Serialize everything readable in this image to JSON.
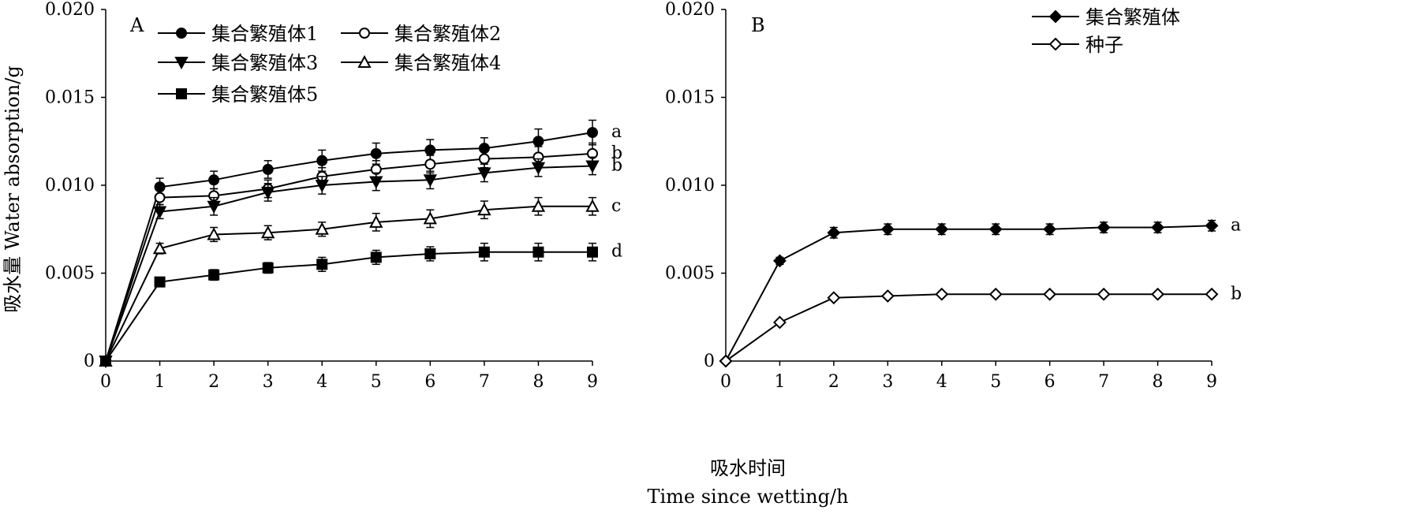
{
  "figure": {
    "ylabel": "吸水量 Water absorption/g",
    "xlabel_cn": "吸水时间",
    "xlabel_en": "Time since wetting/h"
  },
  "chart_data": [
    {
      "panel": "A",
      "type": "line",
      "x": [
        0,
        1,
        2,
        3,
        4,
        5,
        6,
        7,
        8,
        9
      ],
      "xlim": [
        0,
        9
      ],
      "ylim": [
        0,
        0.02
      ],
      "yticks": [
        "0",
        "0.005",
        "0.010",
        "0.015",
        "0.020"
      ],
      "xticks": [
        "0",
        "1",
        "2",
        "3",
        "4",
        "5",
        "6",
        "7",
        "8",
        "9"
      ],
      "legend_position": "top-left",
      "series": [
        {
          "name": "集合繁殖体1",
          "marker": "circle-filled",
          "values": [
            0,
            0.0099,
            0.0103,
            0.0109,
            0.0114,
            0.0118,
            0.012,
            0.0121,
            0.0125,
            0.013
          ],
          "errors": [
            0,
            0.0005,
            0.0005,
            0.0005,
            0.0006,
            0.0006,
            0.0006,
            0.0006,
            0.0007,
            0.0007
          ],
          "label": "a"
        },
        {
          "name": "集合繁殖体2",
          "marker": "circle-open",
          "values": [
            0,
            0.0093,
            0.0094,
            0.0098,
            0.0105,
            0.0109,
            0.0112,
            0.0115,
            0.0116,
            0.0118
          ],
          "errors": [
            0,
            0.0004,
            0.0004,
            0.0005,
            0.0005,
            0.0005,
            0.0005,
            0.0005,
            0.0006,
            0.0006
          ],
          "label": "b"
        },
        {
          "name": "集合繁殖体3",
          "marker": "triangle-down-filled",
          "values": [
            0,
            0.0085,
            0.0088,
            0.0096,
            0.01,
            0.0102,
            0.0103,
            0.0107,
            0.011,
            0.0111
          ],
          "errors": [
            0,
            0.0004,
            0.0005,
            0.0005,
            0.0005,
            0.0005,
            0.0005,
            0.0005,
            0.0005,
            0.0005
          ],
          "label": "b"
        },
        {
          "name": "集合繁殖体4",
          "marker": "triangle-up-open",
          "values": [
            0,
            0.0064,
            0.0072,
            0.0073,
            0.0075,
            0.0079,
            0.0081,
            0.0086,
            0.0088,
            0.0088
          ],
          "errors": [
            0,
            0.0003,
            0.0004,
            0.0004,
            0.0004,
            0.0005,
            0.0005,
            0.0005,
            0.0005,
            0.0005
          ],
          "label": "c"
        },
        {
          "name": "集合繁殖体5",
          "marker": "square-filled",
          "values": [
            0,
            0.0045,
            0.0049,
            0.0053,
            0.0055,
            0.0059,
            0.0061,
            0.0062,
            0.0062,
            0.0062
          ],
          "errors": [
            0,
            0.0002,
            0.0003,
            0.0003,
            0.0004,
            0.0004,
            0.0004,
            0.0005,
            0.0005,
            0.0005
          ],
          "label": "d"
        }
      ]
    },
    {
      "panel": "B",
      "type": "line",
      "x": [
        0,
        1,
        2,
        3,
        4,
        5,
        6,
        7,
        8,
        9
      ],
      "xlim": [
        0,
        9
      ],
      "ylim": [
        0,
        0.02
      ],
      "yticks": [
        "0",
        "0.005",
        "0.010",
        "0.015",
        "0.020"
      ],
      "xticks": [
        "0",
        "1",
        "2",
        "3",
        "4",
        "5",
        "6",
        "7",
        "8",
        "9"
      ],
      "legend_position": "top-right",
      "series": [
        {
          "name": "集合繁殖体",
          "marker": "diamond-filled",
          "values": [
            0,
            0.0057,
            0.0073,
            0.0075,
            0.0075,
            0.0075,
            0.0075,
            0.0076,
            0.0076,
            0.0077
          ],
          "errors": [
            0,
            0.0002,
            0.0003,
            0.0003,
            0.0003,
            0.0003,
            0.0003,
            0.0003,
            0.0003,
            0.0003
          ],
          "label": "a"
        },
        {
          "name": "种子",
          "marker": "diamond-open",
          "values": [
            0,
            0.0022,
            0.0036,
            0.0037,
            0.0038,
            0.0038,
            0.0038,
            0.0038,
            0.0038,
            0.0038
          ],
          "errors": [
            0,
            0.0001,
            0.0001,
            0.0001,
            0.0001,
            0.0001,
            0.0001,
            0.0001,
            0.0001,
            0.0001
          ],
          "label": "b"
        }
      ]
    }
  ]
}
